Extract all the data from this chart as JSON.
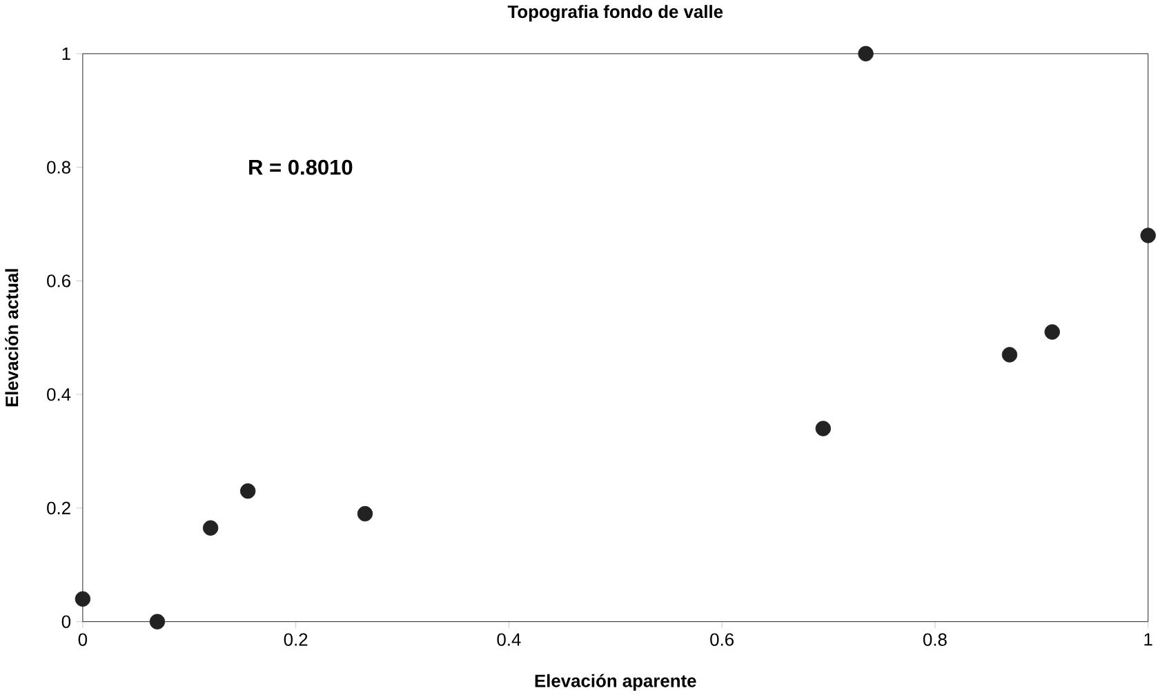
{
  "chart_data": {
    "type": "scatter",
    "title": "Topografia fondo de valle",
    "xlabel": "Elevación aparente",
    "ylabel": "Elevación actual",
    "x": [
      0,
      0.07,
      0.12,
      0.155,
      0.265,
      0.695,
      0.735,
      0.87,
      0.91,
      1.0
    ],
    "values": [
      0.04,
      0.0,
      0.165,
      0.23,
      0.19,
      0.34,
      1.0,
      0.47,
      0.51,
      0.68
    ],
    "color": "#222222",
    "marker": "circle",
    "xlim": [
      0,
      1
    ],
    "ylim": [
      0,
      1
    ],
    "xticks": [
      0,
      0.2,
      0.4,
      0.6,
      0.8,
      1
    ],
    "yticks": [
      0,
      0.2,
      0.4,
      0.6,
      0.8,
      1
    ],
    "grid": false,
    "annotations": [
      "R = 0.8010"
    ]
  }
}
